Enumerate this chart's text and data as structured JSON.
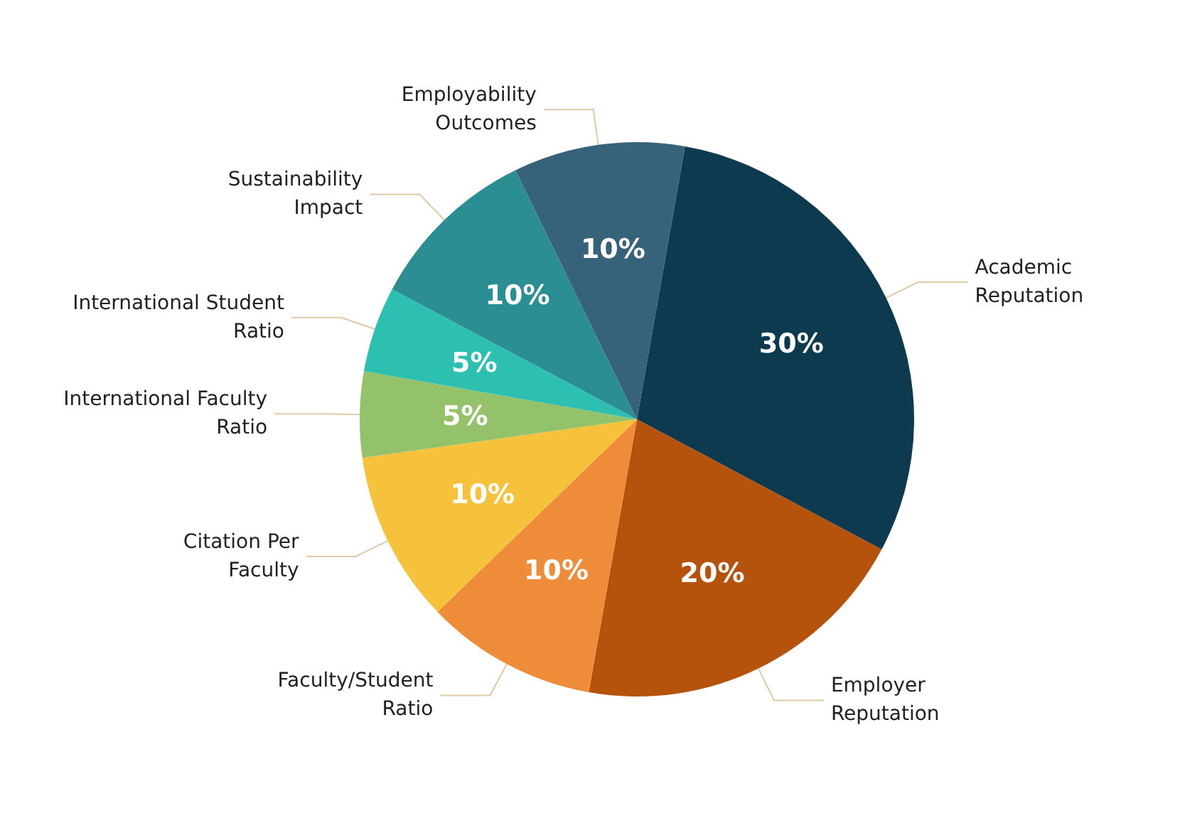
{
  "chart_data": {
    "type": "pie",
    "categories": [
      "Academic Reputation",
      "Employer Reputation",
      "Faculty/Student Ratio",
      "Citation Per Faculty",
      "International Faculty Ratio",
      "International Student Ratio",
      "Sustainability Impact",
      "Employability Outcomes"
    ],
    "values": [
      30,
      20,
      10,
      10,
      5,
      5,
      10,
      10
    ],
    "value_labels": [
      "30%",
      "20%",
      "10%",
      "10%",
      "5%",
      "5%",
      "10%",
      "10%"
    ],
    "colors": [
      "#0d3a4f",
      "#b5520c",
      "#ef8c3a",
      "#f7c23b",
      "#93c26a",
      "#2dbfb0",
      "#2b8e92",
      "#36627a"
    ],
    "legend": false
  }
}
